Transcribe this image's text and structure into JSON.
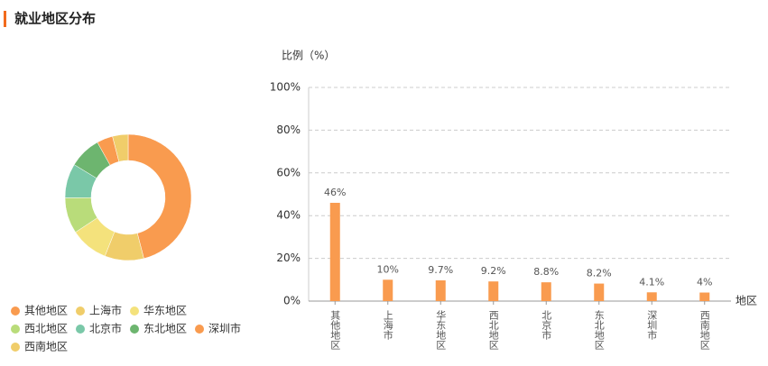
{
  "title": "就业地区分布",
  "chart_data": [
    {
      "type": "pie",
      "categories": [
        "其他地区",
        "上海市",
        "华东地区",
        "西北地区",
        "北京市",
        "东北地区",
        "深圳市",
        "西南地区"
      ],
      "values": [
        46,
        10,
        9.7,
        9.2,
        8.8,
        8.2,
        4.1,
        4
      ],
      "colors": [
        "#f99b4f",
        "#f0cd6a",
        "#f4e27c",
        "#b9dc7a",
        "#7ac8a8",
        "#6db56f",
        "#f99b4f",
        "#f0cd6a"
      ]
    },
    {
      "type": "bar",
      "y_label": "比例（%）",
      "x_label": "地区",
      "categories": [
        "其他地区",
        "上海市",
        "华东地区",
        "西北地区",
        "北京市",
        "东北地区",
        "深圳市",
        "西南地区"
      ],
      "values": [
        46,
        10,
        9.7,
        9.2,
        8.8,
        8.2,
        4.1,
        4
      ],
      "value_labels": [
        "46%",
        "10%",
        "9.7%",
        "9.2%",
        "8.8%",
        "8.2%",
        "4.1%",
        "4%"
      ],
      "color": "#f99b4f",
      "ylim": [
        0,
        100
      ],
      "yticks": [
        {
          "value": 0,
          "label": "0%"
        },
        {
          "value": 20,
          "label": "20%"
        },
        {
          "value": 40,
          "label": "40%"
        },
        {
          "value": 60,
          "label": "60%"
        },
        {
          "value": 80,
          "label": "80%"
        },
        {
          "value": 100,
          "label": "100%"
        }
      ],
      "grid": true
    }
  ]
}
